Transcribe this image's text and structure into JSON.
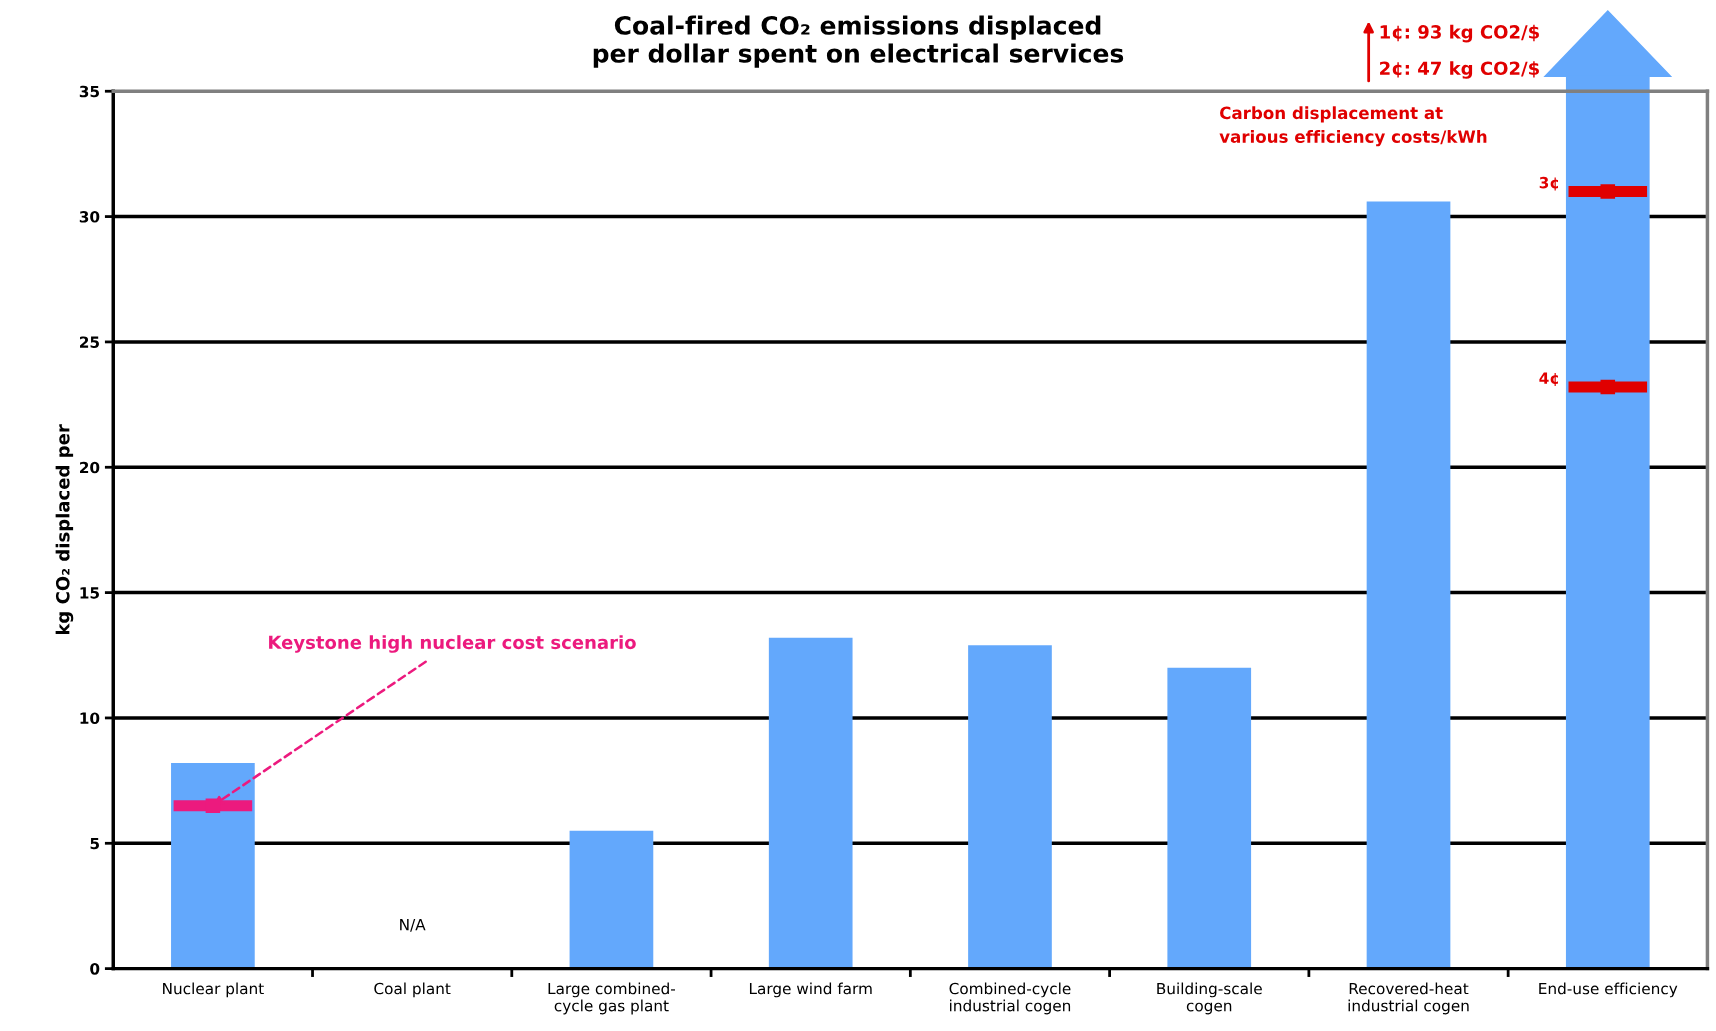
{
  "chart_data": {
    "type": "bar",
    "title": "Coal-fired CO₂ emissions displaced\nper dollar spent on electrical services",
    "ylabel": "kg CO₂ displaced per",
    "categories": [
      "Nuclear plant",
      "Coal plant",
      "Large combined-\ncycle gas plant",
      "Large wind farm",
      "Combined-cycle\nindustrial cogen",
      "Building-scale\ncogen",
      "Recovered-heat\nindustrial cogen",
      "End-use efficiency"
    ],
    "series": [
      {
        "type": "bar",
        "color": "#63a8fc",
        "values": [
          8.2,
          null,
          5.5,
          13.2,
          12.9,
          12.0,
          30.6,
          35
        ],
        "value_labels": [
          null,
          "N/A",
          null,
          null,
          null,
          null,
          null,
          null
        ]
      },
      {
        "type": "scatter",
        "color": "#ec1a7e",
        "x": [
          "Nuclear plant"
        ],
        "values": [
          6.5
        ]
      },
      {
        "type": "scatter",
        "color": "#e00000",
        "x": [
          "End-use efficiency",
          "End-use efficiency"
        ],
        "values": [
          31.0,
          23.2
        ]
      }
    ],
    "ylim": [
      0,
      35
    ],
    "yticks": [
      0,
      5,
      10,
      15,
      20,
      25,
      30,
      35
    ],
    "grid": "y",
    "annotations": [
      {
        "text": "Keystone high nuclear cost scenario",
        "x": "Nuclear plant",
        "y": 6.5
      },
      "3¢",
      "4¢",
      "1¢: 93 kg CO2/$",
      "2¢: 47 kg CO2/$",
      "Carbon displacement at\nvarious efficiency costs/kWh"
    ]
  }
}
